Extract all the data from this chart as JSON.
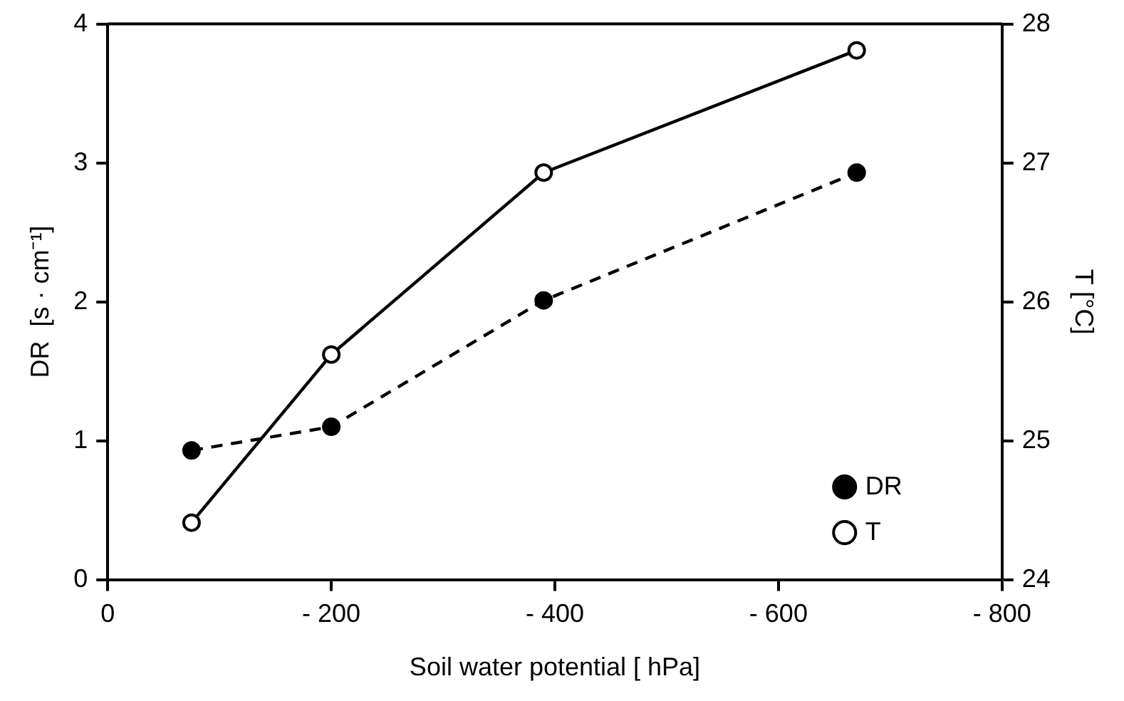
{
  "chart_data": {
    "type": "line",
    "xlabel": "Soil water potential [ hPa]",
    "ylabel": "DR  [s · cm⁻¹]",
    "y2label": "T [°C]",
    "x": [
      -75,
      -200,
      -390,
      -670
    ],
    "xlim": [
      0,
      -800
    ],
    "xticks": [
      0,
      {
        "value": -200,
        "label": "- 200"
      },
      {
        "value": -400,
        "label": "- 400"
      },
      {
        "value": -600,
        "label": "- 600"
      },
      {
        "value": -800,
        "label": "- 800"
      }
    ],
    "ylim": [
      0,
      4
    ],
    "yticks": [
      0,
      1,
      2,
      3,
      4
    ],
    "y2lim": [
      24,
      28
    ],
    "y2ticks": [
      24,
      25,
      26,
      27,
      28
    ],
    "series": [
      {
        "name": "DR",
        "color": "#000000",
        "values": [
          0.93,
          1.1,
          2.01,
          2.93
        ],
        "line_style": "dashed"
      },
      {
        "name": "T",
        "color": "#000000",
        "values": [
          24.41,
          25.62,
          26.93,
          27.81
        ],
        "axis": "y2",
        "line_style": "solid"
      }
    ],
    "marker": "circle",
    "grid": false,
    "legend": "bottom right"
  }
}
